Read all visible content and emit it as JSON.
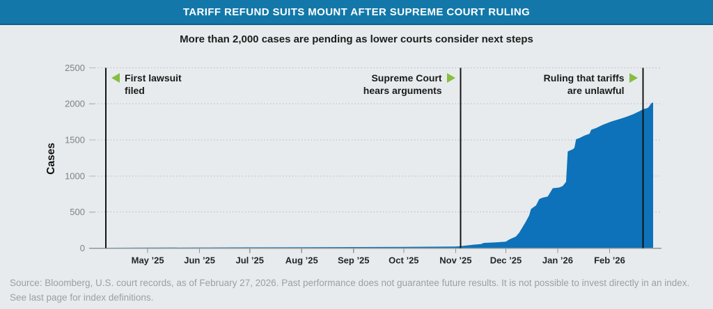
{
  "header": {
    "title": "TARIFF REFUND SUITS MOUNT AFTER SUPREME COURT RULING"
  },
  "subtitle": "More than 2,000 cases are pending as lower courts consider next steps",
  "footer": {
    "source_note": "Source: Bloomberg, U.S. court records, as of February 27, 2026. Past performance does not guarantee future results. It is not possible to invest directly in an index. See last page for index definitions."
  },
  "colors": {
    "header_bg": "#1378a9",
    "header_border": "#0c5f88",
    "background": "#e7ebed",
    "area_fill": "#0d72b9",
    "event_line": "#141414",
    "arrow_green": "#87bd40",
    "grid": "#b4babd",
    "axis": "#8e9598",
    "x_tick_label": "#252525",
    "y_tick_label": "#7d8285",
    "annotation_text": "#1a1a1a",
    "footer_text": "#9aa0a3"
  },
  "chart_data": {
    "type": "area",
    "title": "TARIFF REFUND SUITS MOUNT AFTER SUPREME COURT RULING",
    "subtitle": "More than 2,000 cases are pending as lower courts consider next steps",
    "ylabel": "Cases",
    "ylim": [
      0,
      2500
    ],
    "y_ticks": [
      0,
      500,
      1000,
      1500,
      2000,
      2500
    ],
    "grid": "horizontal-dotted",
    "legend": false,
    "x_start": "2025-03-27",
    "x_end": "2026-03-04",
    "x_ticks": [
      {
        "label": "May ’25",
        "date": "2025-05-01"
      },
      {
        "label": "Jun ’25",
        "date": "2025-06-01"
      },
      {
        "label": "Jul ’25",
        "date": "2025-07-01"
      },
      {
        "label": "Aug ’25",
        "date": "2025-08-01"
      },
      {
        "label": "Sep ’25",
        "date": "2025-09-01"
      },
      {
        "label": "Oct ’25",
        "date": "2025-10-01"
      },
      {
        "label": "Nov ’25",
        "date": "2025-11-01"
      },
      {
        "label": "Dec ’25",
        "date": "2025-12-01"
      },
      {
        "label": "Jan ’26",
        "date": "2026-01-01"
      },
      {
        "label": "Feb ’26",
        "date": "2026-02-01"
      }
    ],
    "annotations": [
      {
        "label": "First lawsuit\nfiled",
        "date": "2025-04-06",
        "arrow": "left"
      },
      {
        "label": "Supreme Court\nhears arguments",
        "date": "2025-11-04",
        "arrow": "right"
      },
      {
        "label": "Ruling that tariffs\nare unlawful",
        "date": "2026-02-21",
        "arrow": "right"
      }
    ],
    "series": [
      {
        "name": "Cases",
        "points": [
          [
            "2025-03-27",
            2
          ],
          [
            "2025-04-06",
            5
          ],
          [
            "2025-05-01",
            7
          ],
          [
            "2025-06-01",
            9
          ],
          [
            "2025-07-01",
            11
          ],
          [
            "2025-08-01",
            12
          ],
          [
            "2025-09-01",
            14
          ],
          [
            "2025-10-01",
            17
          ],
          [
            "2025-11-01",
            22
          ],
          [
            "2025-11-04",
            28
          ],
          [
            "2025-11-08",
            38
          ],
          [
            "2025-11-12",
            48
          ],
          [
            "2025-11-16",
            55
          ],
          [
            "2025-11-18",
            72
          ],
          [
            "2025-11-24",
            78
          ],
          [
            "2025-12-01",
            90
          ],
          [
            "2025-12-03",
            120
          ],
          [
            "2025-12-05",
            140
          ],
          [
            "2025-12-07",
            160
          ],
          [
            "2025-12-09",
            215
          ],
          [
            "2025-12-11",
            290
          ],
          [
            "2025-12-13",
            370
          ],
          [
            "2025-12-15",
            455
          ],
          [
            "2025-12-16",
            540
          ],
          [
            "2025-12-18",
            575
          ],
          [
            "2025-12-19",
            590
          ],
          [
            "2025-12-21",
            680
          ],
          [
            "2025-12-23",
            700
          ],
          [
            "2025-12-26",
            715
          ],
          [
            "2025-12-28",
            790
          ],
          [
            "2025-12-29",
            830
          ],
          [
            "2026-01-02",
            840
          ],
          [
            "2026-01-04",
            862
          ],
          [
            "2026-01-06",
            920
          ],
          [
            "2026-01-07",
            1340
          ],
          [
            "2026-01-10",
            1370
          ],
          [
            "2026-01-11",
            1390
          ],
          [
            "2026-01-12",
            1510
          ],
          [
            "2026-01-14",
            1525
          ],
          [
            "2026-01-17",
            1560
          ],
          [
            "2026-01-20",
            1585
          ],
          [
            "2026-01-21",
            1640
          ],
          [
            "2026-01-24",
            1665
          ],
          [
            "2026-01-28",
            1710
          ],
          [
            "2026-02-02",
            1755
          ],
          [
            "2026-02-07",
            1790
          ],
          [
            "2026-02-11",
            1820
          ],
          [
            "2026-02-15",
            1855
          ],
          [
            "2026-02-19",
            1900
          ],
          [
            "2026-02-21",
            1925
          ],
          [
            "2026-02-24",
            1945
          ],
          [
            "2026-02-26",
            2010
          ],
          [
            "2026-02-27",
            2020
          ]
        ]
      }
    ]
  }
}
